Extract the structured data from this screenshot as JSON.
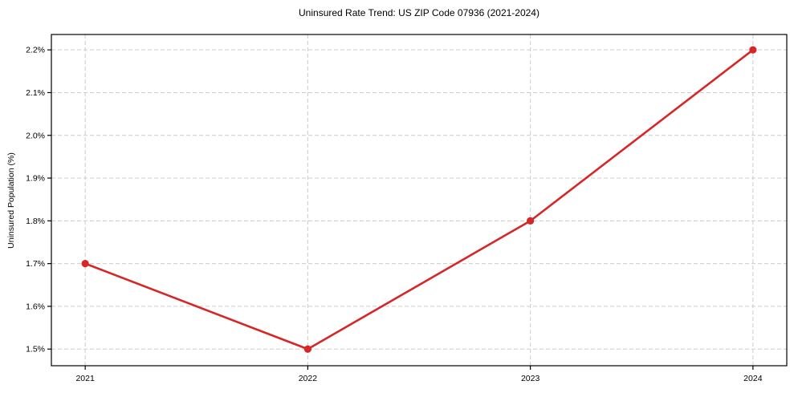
{
  "chart_data": {
    "type": "line",
    "title": "Uninsured Rate Trend: US ZIP Code 07936 (2021-2024)",
    "xlabel": "",
    "ylabel": "Uninsured Population (%)",
    "categories": [
      "2021",
      "2022",
      "2023",
      "2024"
    ],
    "series": [
      {
        "name": "Uninsured rate",
        "values": [
          1.7,
          1.5,
          1.8,
          2.2
        ]
      }
    ],
    "y_ticks": [
      1.5,
      1.6,
      1.7,
      1.8,
      1.9,
      2.0,
      2.1,
      2.2
    ],
    "y_tick_labels": [
      "1.5%",
      "1.6%",
      "1.7%",
      "1.8%",
      "1.9%",
      "2.0%",
      "2.1%",
      "2.2%"
    ],
    "x_tick_labels": [
      "2021",
      "2022",
      "2023",
      "2024"
    ],
    "ylim": [
      1.461,
      2.236
    ],
    "grid": true,
    "grid_style": "dashed",
    "legend": "none",
    "line_color": "#d62728",
    "marker": "circle",
    "marker_color": "#d62728",
    "grid_color": "#cccccc",
    "spine_color": "#000000",
    "background_color": "#ffffff"
  }
}
